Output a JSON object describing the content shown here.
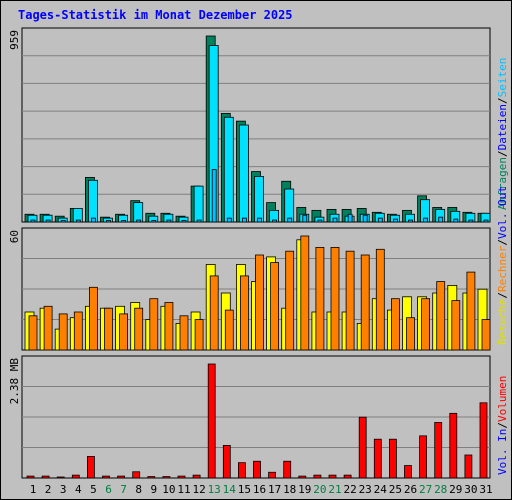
{
  "title": "Tages-Statistik im Monat Dezember 2025",
  "colors": {
    "hits": "#00805c",
    "files": "#00e0ff",
    "pages": "#00c0ff",
    "visits": "#ffff00",
    "sites": "#ff8000",
    "kbytes": "#ff0000",
    "weekend": "#008040",
    "weekday": "#000000"
  },
  "chart_data": [
    {
      "type": "bar",
      "panel": "top",
      "max_label": "959",
      "ylim": [
        0,
        959
      ],
      "categories": [
        "1",
        "2",
        "3",
        "4",
        "5",
        "6",
        "7",
        "8",
        "9",
        "10",
        "11",
        "12",
        "13",
        "14",
        "15",
        "16",
        "17",
        "18",
        "19",
        "20",
        "21",
        "22",
        "23",
        "24",
        "25",
        "26",
        "27",
        "28",
        "29",
        "30",
        "31"
      ],
      "series": [
        {
          "name": "Anfragen",
          "values": [
            40,
            40,
            30,
            70,
            230,
            25,
            40,
            110,
            45,
            45,
            30,
            185,
            959,
            560,
            520,
            260,
            100,
            210,
            75,
            60,
            65,
            65,
            70,
            50,
            40,
            60,
            135,
            75,
            75,
            50,
            45
          ]
        },
        {
          "name": "Dateien",
          "values": [
            35,
            35,
            20,
            70,
            215,
            20,
            35,
            100,
            30,
            40,
            25,
            185,
            910,
            540,
            500,
            235,
            60,
            170,
            40,
            25,
            40,
            30,
            40,
            45,
            35,
            40,
            115,
            65,
            55,
            45,
            45
          ]
        },
        {
          "name": "Seiten",
          "values": [
            10,
            10,
            8,
            10,
            20,
            8,
            8,
            10,
            8,
            10,
            8,
            10,
            270,
            20,
            20,
            20,
            10,
            20,
            35,
            10,
            20,
            40,
            35,
            20,
            15,
            10,
            20,
            25,
            15,
            10,
            10
          ]
        }
      ]
    },
    {
      "type": "bar",
      "panel": "middle",
      "max_label": "60",
      "ylim": [
        0,
        60
      ],
      "categories": [
        "1",
        "2",
        "3",
        "4",
        "5",
        "6",
        "7",
        "8",
        "9",
        "10",
        "11",
        "12",
        "13",
        "14",
        "15",
        "16",
        "17",
        "18",
        "19",
        "20",
        "21",
        "22",
        "23",
        "24",
        "25",
        "26",
        "27",
        "28",
        "29",
        "30",
        "31"
      ],
      "series": [
        {
          "name": "Besuche",
          "values": [
            20,
            22,
            11,
            17,
            23,
            22,
            23,
            25,
            16,
            23,
            14,
            20,
            45,
            30,
            45,
            36,
            49,
            22,
            58,
            20,
            20,
            20,
            14,
            27,
            21,
            28,
            28,
            30,
            34,
            30,
            32
          ]
        },
        {
          "name": "Rechner",
          "values": [
            18,
            23,
            19,
            20,
            33,
            22,
            19,
            22,
            27,
            25,
            18,
            16,
            39,
            21,
            39,
            50,
            46,
            52,
            60,
            54,
            54,
            52,
            50,
            53,
            27,
            17,
            27,
            36,
            26,
            41,
            16
          ]
        }
      ]
    },
    {
      "type": "bar",
      "panel": "bottom",
      "max_label": "2.38 MB",
      "ylim": [
        0,
        2.38
      ],
      "categories": [
        "1",
        "2",
        "3",
        "4",
        "5",
        "6",
        "7",
        "8",
        "9",
        "10",
        "11",
        "12",
        "13",
        "14",
        "15",
        "16",
        "17",
        "18",
        "19",
        "20",
        "21",
        "22",
        "23",
        "24",
        "25",
        "26",
        "27",
        "28",
        "29",
        "30",
        "31"
      ],
      "series": [
        {
          "name": "Volumen",
          "values": [
            0.04,
            0.04,
            0.02,
            0.06,
            0.45,
            0.04,
            0.04,
            0.13,
            0.03,
            0.03,
            0.04,
            0.06,
            2.38,
            0.68,
            0.32,
            0.35,
            0.12,
            0.35,
            0.04,
            0.06,
            0.06,
            0.06,
            1.27,
            0.81,
            0.81,
            0.26,
            0.88,
            1.16,
            1.35,
            0.48,
            1.57
          ]
        }
      ]
    }
  ],
  "legend_right": {
    "top": [
      {
        "text": "Anfragen",
        "color": "#00805c"
      },
      {
        "text": "Dateien",
        "color": "#0000ff"
      },
      {
        "text": "Seiten",
        "color": "#00c0ff"
      }
    ],
    "middle": [
      {
        "text": "Besuche",
        "color": "#e0e000"
      },
      {
        "text": "Rechner",
        "color": "#ff8000"
      },
      {
        "text": "Vol. Out",
        "color": "#0000ff"
      }
    ],
    "bottom": [
      {
        "text": "Vol. In",
        "color": "#0000ff"
      },
      {
        "text": "Volumen",
        "color": "#ff0000"
      }
    ]
  },
  "weekend_days": [
    6,
    7,
    13,
    14,
    20,
    21,
    27,
    28
  ]
}
